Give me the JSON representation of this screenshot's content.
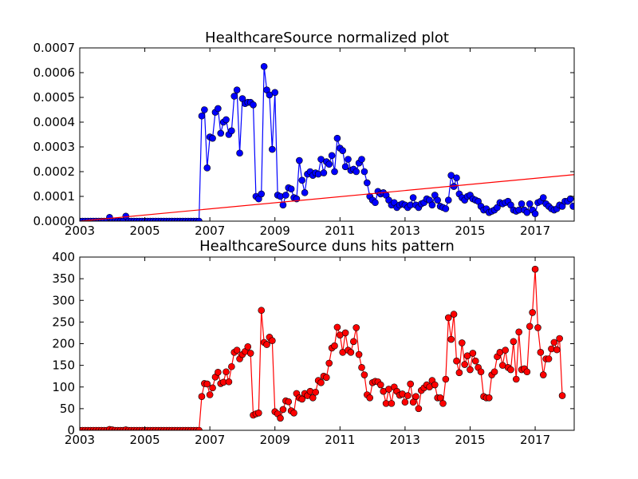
{
  "figure": {
    "background": "#ffffff"
  },
  "chart_data": [
    {
      "type": "line",
      "title": "HealthcareSource normalized plot",
      "xlabel": "",
      "ylabel": "",
      "xlim": [
        2003.0,
        2018.2
      ],
      "ylim": [
        0,
        0.0007
      ],
      "x_ticks": [
        2003,
        2005,
        2007,
        2009,
        2011,
        2013,
        2015,
        2017
      ],
      "x_tick_labels": [
        "2003",
        "2005",
        "2007",
        "2009",
        "2011",
        "2013",
        "2015",
        "2017"
      ],
      "y_ticks": [
        0,
        0.0001,
        0.0002,
        0.0003,
        0.0004,
        0.0005,
        0.0006,
        0.0007
      ],
      "y_tick_labels": [
        "0.0000",
        "0.0001",
        "0.0002",
        "0.0003",
        "0.0004",
        "0.0005",
        "0.0006",
        "0.0007"
      ],
      "grid": false,
      "series": [
        {
          "style": "line-with-circle-markers",
          "color": "#0000ff",
          "x_start": 2003.0,
          "x_step_months": 1,
          "values": [
            0,
            0,
            0,
            0,
            0,
            0,
            0,
            0,
            0,
            0,
            0,
            1.5e-05,
            0,
            0,
            0,
            0,
            0,
            2e-05,
            0,
            0,
            0,
            0,
            0,
            0,
            0,
            0,
            0,
            0,
            0,
            0,
            0,
            0,
            0,
            0,
            0,
            0,
            0,
            0,
            0,
            0,
            0,
            0,
            0,
            0,
            0,
            0.000425,
            0.00045,
            0.000215,
            0.00034,
            0.000335,
            0.00044,
            0.000455,
            0.000355,
            0.0004,
            0.00041,
            0.00035,
            0.000365,
            0.000505,
            0.00053,
            0.000275,
            0.000495,
            0.000475,
            0.00048,
            0.00048,
            0.00047,
            0.0001,
            9e-05,
            0.00011,
            0.000625,
            0.00053,
            0.00051,
            0.00029,
            0.00052,
            0.000105,
            0.0001,
            6.5e-05,
            0.000105,
            0.000135,
            0.00013,
            9.5e-05,
            9e-05,
            0.000245,
            0.000165,
            0.000115,
            0.00019,
            0.0002,
            0.000185,
            0.000195,
            0.00019,
            0.00025,
            0.000195,
            0.00024,
            0.00023,
            0.000265,
            0.0002,
            0.000335,
            0.000295,
            0.000285,
            0.00022,
            0.00025,
            0.000205,
            0.00021,
            0.0002,
            0.000235,
            0.00025,
            0.0002,
            0.000155,
            0.0001,
            8.5e-05,
            7.5e-05,
            0.00012,
            0.00011,
            0.000115,
            0.000105,
            8.5e-05,
            6.5e-05,
            7.5e-05,
            5.5e-05,
            6.5e-05,
            7e-05,
            6.5e-05,
            5.5e-05,
            6.5e-05,
            9.5e-05,
            6.5e-05,
            5.5e-05,
            7e-05,
            7.5e-05,
            9e-05,
            8.5e-05,
            6.5e-05,
            0.000105,
            8.5e-05,
            6e-05,
            5.5e-05,
            5e-05,
            8.5e-05,
            0.000185,
            0.00014,
            0.000175,
            0.00011,
            9.5e-05,
            8.5e-05,
            0.0001,
            0.000105,
            9e-05,
            8.5e-05,
            8e-05,
            6e-05,
            4.5e-05,
            5e-05,
            3.5e-05,
            4e-05,
            4.5e-05,
            5.5e-05,
            7.5e-05,
            7e-05,
            7.5e-05,
            8e-05,
            6.5e-05,
            4.5e-05,
            4e-05,
            4.5e-05,
            7e-05,
            4.5e-05,
            3.5e-05,
            7e-05,
            4.5e-05,
            3e-05,
            7.5e-05,
            8e-05,
            9.5e-05,
            7e-05,
            6e-05,
            5e-05,
            4.5e-05,
            5e-05,
            6.5e-05,
            6e-05,
            8e-05,
            8e-05,
            9e-05,
            6e-05
          ]
        },
        {
          "style": "trend-line",
          "color": "#ff0000",
          "x": [
            2003.0,
            2018.2
          ],
          "y": [
            0.0,
            0.000188
          ]
        }
      ]
    },
    {
      "type": "line",
      "title": "HealthcareSource duns hits pattern",
      "xlabel": "",
      "ylabel": "",
      "xlim": [
        2003.0,
        2018.2
      ],
      "ylim": [
        0,
        400
      ],
      "x_ticks": [
        2003,
        2005,
        2007,
        2009,
        2011,
        2013,
        2015,
        2017
      ],
      "x_tick_labels": [
        "2003",
        "2005",
        "2007",
        "2009",
        "2011",
        "2013",
        "2015",
        "2017"
      ],
      "y_ticks": [
        0,
        50,
        100,
        150,
        200,
        250,
        300,
        350,
        400
      ],
      "y_tick_labels": [
        "0",
        "50",
        "100",
        "150",
        "200",
        "250",
        "300",
        "350",
        "400"
      ],
      "grid": false,
      "series": [
        {
          "style": "line-with-circle-markers",
          "color": "#ff0000",
          "x_start": 2003.0,
          "x_step_months": 1,
          "values": [
            0,
            0,
            0,
            0,
            0,
            0,
            0,
            0,
            0,
            0,
            0,
            2,
            1,
            0,
            0,
            0,
            0,
            1,
            0,
            0,
            0,
            0,
            0,
            0,
            0,
            0,
            0,
            0,
            0,
            0,
            0,
            0,
            0,
            0,
            0,
            0,
            0,
            0,
            0,
            0,
            0,
            0,
            0,
            0,
            0,
            78,
            108,
            107,
            82,
            98,
            123,
            134,
            108,
            111,
            135,
            112,
            147,
            180,
            185,
            165,
            175,
            182,
            193,
            178,
            35,
            38,
            40,
            277,
            203,
            198,
            215,
            207,
            43,
            38,
            28,
            48,
            68,
            66,
            45,
            40,
            85,
            75,
            72,
            85,
            80,
            90,
            75,
            88,
            115,
            110,
            125,
            122,
            155,
            190,
            195,
            238,
            220,
            180,
            225,
            185,
            180,
            205,
            237,
            175,
            145,
            128,
            82,
            75,
            110,
            113,
            112,
            105,
            90,
            62,
            95,
            62,
            100,
            90,
            81,
            84,
            65,
            80,
            107,
            65,
            78,
            50,
            92,
            98,
            105,
            100,
            115,
            105,
            75,
            75,
            62,
            118,
            260,
            210,
            268,
            160,
            133,
            202,
            152,
            172,
            140,
            178,
            160,
            145,
            135,
            78,
            75,
            75,
            128,
            135,
            170,
            180,
            150,
            185,
            145,
            140,
            205,
            118,
            227,
            140,
            142,
            135,
            240,
            272,
            372,
            237,
            180,
            128,
            165,
            165,
            188,
            203,
            186,
            212,
            80
          ]
        }
      ]
    }
  ]
}
